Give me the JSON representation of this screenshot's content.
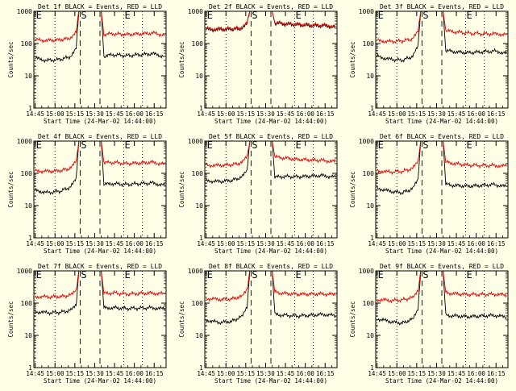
{
  "colors": {
    "background": "#ffffe8",
    "events": "#000000",
    "lld": "#e00000",
    "axes": "#000000"
  },
  "shared": {
    "ylabel": "Counts/sec",
    "xlabel": "Start Time (24-Mar-02 14:44:00)",
    "x_ticks": [
      "14:45",
      "15:00",
      "15:15",
      "15:30",
      "15:45",
      "16:00",
      "16:15"
    ],
    "x_tick_minutes": [
      1,
      16,
      31,
      46,
      61,
      76,
      91
    ],
    "xlim_minutes": [
      0,
      100
    ],
    "y_scale": "log",
    "ylim": [
      1,
      1000
    ],
    "y_ticks": [
      "1",
      "10",
      "100",
      "1000"
    ],
    "legend": "",
    "markers": [
      {
        "label": "E",
        "minute": 1,
        "style": "dotted"
      },
      {
        "label": "",
        "minute": 16,
        "style": "dotted"
      },
      {
        "label": "S",
        "minute": 35,
        "style": "dashed"
      },
      {
        "label": "",
        "minute": 50,
        "style": "dashed"
      },
      {
        "label": "E",
        "minute": 68,
        "style": "dotted"
      },
      {
        "label": "",
        "minute": 82,
        "style": "dotted"
      }
    ]
  },
  "chart_data": [
    {
      "type": "line",
      "title": "Det 1f BLACK = Events, RED = LLD",
      "series": [
        {
          "name": "Events",
          "x": [
            1,
            10,
            20,
            28,
            32,
            34,
            51,
            53,
            60,
            70,
            80,
            90,
            99
          ],
          "y": [
            35,
            30,
            32,
            40,
            70,
            1000,
            1000,
            40,
            45,
            42,
            45,
            48,
            40
          ]
        },
        {
          "name": "LLD",
          "x": [
            1,
            10,
            20,
            28,
            32,
            34,
            51,
            53,
            60,
            70,
            80,
            90,
            99
          ],
          "y": [
            130,
            125,
            130,
            150,
            220,
            1000,
            1000,
            190,
            200,
            190,
            200,
            210,
            185
          ]
        }
      ]
    },
    {
      "type": "line",
      "title": "Det 2f BLACK = Events, RED = LLD",
      "series": [
        {
          "name": "Events",
          "x": [
            1,
            10,
            20,
            28,
            32,
            34,
            51,
            53,
            60,
            70,
            80,
            90,
            99
          ],
          "y": [
            270,
            270,
            275,
            290,
            400,
            1000,
            1000,
            420,
            400,
            380,
            360,
            350,
            330
          ]
        },
        {
          "name": "LLD",
          "x": [
            1,
            10,
            20,
            28,
            32,
            34,
            51,
            53,
            60,
            70,
            80,
            90,
            99
          ],
          "y": [
            285,
            285,
            290,
            310,
            420,
            1000,
            1000,
            440,
            420,
            400,
            380,
            370,
            350
          ]
        }
      ]
    },
    {
      "type": "line",
      "title": "Det 3f BLACK = Events, RED = LLD",
      "series": [
        {
          "name": "Events",
          "x": [
            1,
            10,
            20,
            28,
            32,
            34,
            51,
            53,
            60,
            70,
            80,
            90,
            99
          ],
          "y": [
            40,
            33,
            30,
            40,
            80,
            1000,
            1000,
            60,
            55,
            52,
            55,
            58,
            50
          ]
        },
        {
          "name": "LLD",
          "x": [
            1,
            10,
            20,
            28,
            32,
            34,
            51,
            53,
            60,
            70,
            80,
            90,
            99
          ],
          "y": [
            125,
            115,
            120,
            140,
            230,
            1000,
            1000,
            250,
            230,
            210,
            200,
            200,
            190
          ]
        }
      ]
    },
    {
      "type": "line",
      "title": "Det 4f BLACK = Events, RED = LLD",
      "series": [
        {
          "name": "Events",
          "x": [
            1,
            10,
            20,
            28,
            32,
            34,
            51,
            53,
            60,
            70,
            80,
            90,
            99
          ],
          "y": [
            30,
            25,
            28,
            38,
            65,
            1000,
            1000,
            45,
            48,
            45,
            48,
            50,
            42
          ]
        },
        {
          "name": "LLD",
          "x": [
            1,
            10,
            20,
            28,
            32,
            34,
            51,
            53,
            60,
            70,
            80,
            90,
            99
          ],
          "y": [
            120,
            115,
            120,
            145,
            230,
            1000,
            1000,
            210,
            220,
            200,
            210,
            220,
            190
          ]
        }
      ]
    },
    {
      "type": "line",
      "title": "Det 5f BLACK = Events, RED = LLD",
      "series": [
        {
          "name": "Events",
          "x": [
            1,
            10,
            20,
            28,
            32,
            34,
            51,
            53,
            60,
            70,
            80,
            90,
            99
          ],
          "y": [
            60,
            55,
            60,
            75,
            120,
            1000,
            1000,
            75,
            80,
            78,
            82,
            85,
            75
          ]
        },
        {
          "name": "LLD",
          "x": [
            1,
            10,
            20,
            28,
            32,
            34,
            51,
            53,
            60,
            70,
            80,
            90,
            99
          ],
          "y": [
            180,
            175,
            185,
            210,
            330,
            1000,
            1000,
            320,
            300,
            270,
            260,
            250,
            230
          ]
        }
      ]
    },
    {
      "type": "line",
      "title": "Det 6f BLACK = Events, RED = LLD",
      "series": [
        {
          "name": "Events",
          "x": [
            1,
            10,
            20,
            28,
            32,
            34,
            51,
            53,
            60,
            70,
            80,
            90,
            99
          ],
          "y": [
            35,
            28,
            25,
            33,
            65,
            1000,
            1000,
            45,
            42,
            40,
            42,
            45,
            38
          ]
        },
        {
          "name": "LLD",
          "x": [
            1,
            10,
            20,
            28,
            32,
            34,
            51,
            53,
            60,
            70,
            80,
            90,
            99
          ],
          "y": [
            120,
            110,
            115,
            140,
            240,
            1000,
            1000,
            220,
            200,
            180,
            175,
            175,
            165
          ]
        }
      ]
    },
    {
      "type": "line",
      "title": "Det 7f BLACK = Events, RED = LLD",
      "series": [
        {
          "name": "Events",
          "x": [
            1,
            10,
            20,
            28,
            32,
            34,
            51,
            53,
            60,
            70,
            80,
            90,
            99
          ],
          "y": [
            55,
            50,
            52,
            60,
            90,
            1000,
            1000,
            70,
            72,
            68,
            70,
            72,
            65
          ]
        },
        {
          "name": "LLD",
          "x": [
            1,
            10,
            20,
            28,
            32,
            34,
            51,
            53,
            60,
            70,
            80,
            90,
            99
          ],
          "y": [
            160,
            155,
            160,
            175,
            260,
            1000,
            1000,
            200,
            210,
            190,
            200,
            205,
            190
          ]
        }
      ]
    },
    {
      "type": "line",
      "title": "Det 8f BLACK = Events, RED = LLD",
      "series": [
        {
          "name": "Events",
          "x": [
            1,
            10,
            20,
            28,
            32,
            34,
            51,
            53,
            60,
            70,
            80,
            90,
            99
          ],
          "y": [
            30,
            25,
            27,
            38,
            80,
            1000,
            1000,
            45,
            42,
            40,
            42,
            45,
            40
          ]
        },
        {
          "name": "LLD",
          "x": [
            1,
            10,
            20,
            28,
            32,
            34,
            51,
            53,
            60,
            70,
            80,
            90,
            99
          ],
          "y": [
            140,
            130,
            135,
            160,
            280,
            1000,
            1000,
            220,
            200,
            190,
            190,
            195,
            180
          ]
        }
      ]
    },
    {
      "type": "line",
      "title": "Det 9f BLACK = Events, RED = LLD",
      "series": [
        {
          "name": "Events",
          "x": [
            1,
            10,
            20,
            28,
            32,
            34,
            51,
            53,
            60,
            70,
            80,
            90,
            99
          ],
          "y": [
            33,
            27,
            24,
            32,
            70,
            1000,
            1000,
            42,
            40,
            38,
            40,
            42,
            36
          ]
        },
        {
          "name": "LLD",
          "x": [
            1,
            10,
            20,
            28,
            32,
            34,
            51,
            53,
            60,
            70,
            80,
            90,
            99
          ],
          "y": [
            130,
            120,
            125,
            150,
            260,
            1000,
            1000,
            210,
            195,
            185,
            185,
            190,
            175
          ]
        }
      ]
    }
  ]
}
